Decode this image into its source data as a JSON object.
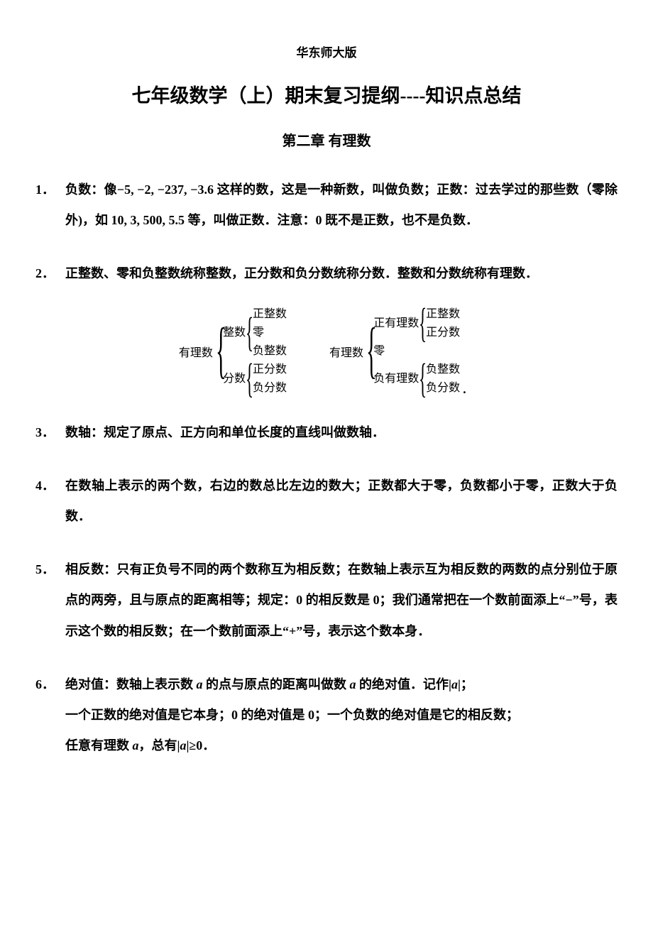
{
  "header": "华东师大版",
  "title": "七年级数学（上）期末复习提纲----知识点总结",
  "chapter": "第二章  有理数",
  "items": [
    {
      "num": "1．",
      "text": "负数：像−5, −2, −237, −3.6 这样的数，这是一种新数，叫做负数；正数：过去学过的那些数（零除外)，如 10, 3, 500, 5.5 等，叫做正数．注意：0 既不是正数，也不是负数．"
    },
    {
      "num": "2．",
      "text": "正整数、零和负整数统称整数，正分数和负分数统称分数．整数和分数统称有理数．"
    },
    {
      "num": "3．",
      "text": "数轴：规定了原点、正方向和单位长度的直线叫做数轴．"
    },
    {
      "num": "4．",
      "text": "在数轴上表示的两个数，右边的数总比左边的数大；正数都大于零，负数都小于零，正数大于负数．"
    },
    {
      "num": "5．",
      "text": "相反数：只有正负号不同的两个数称互为相反数；在数轴上表示互为相反数的两数的点分别位于原点的两旁，且与原点的距离相等；规定：0 的相反数是 0；我们通常把在一个数前面添上“−”号，表示这个数的相反数；在一个数前面添上“+”号，表示这个数本身．"
    },
    {
      "num": "6．",
      "text_parts": {
        "p1": "绝对值：数轴上表示数 ",
        "p2": " 的点与原点的距离叫做数 ",
        "p3": " 的绝对值．记作|",
        "p4": "|；",
        "p5": "一个正数的绝对值是它本身；0 的绝对值是 0；一个负数的绝对值是它的相反数；",
        "p6": "任意有理数 ",
        "p7": "，总有|",
        "p8": "|≥0．",
        "var": "a"
      }
    }
  ],
  "diagram": {
    "left": {
      "root": "有理数",
      "b1": {
        "label": "整数",
        "leaves": [
          "正整数",
          "零",
          "负整数"
        ]
      },
      "b2": {
        "label": "分数",
        "leaves": [
          "正分数",
          "负分数"
        ]
      }
    },
    "right": {
      "root": "有理数",
      "b1": {
        "label": "正有理数",
        "leaves": [
          "正整数",
          "正分数"
        ]
      },
      "mid": "零",
      "b2": {
        "label": "负有理数",
        "leaves": [
          "负整数",
          "负分数"
        ]
      }
    }
  }
}
